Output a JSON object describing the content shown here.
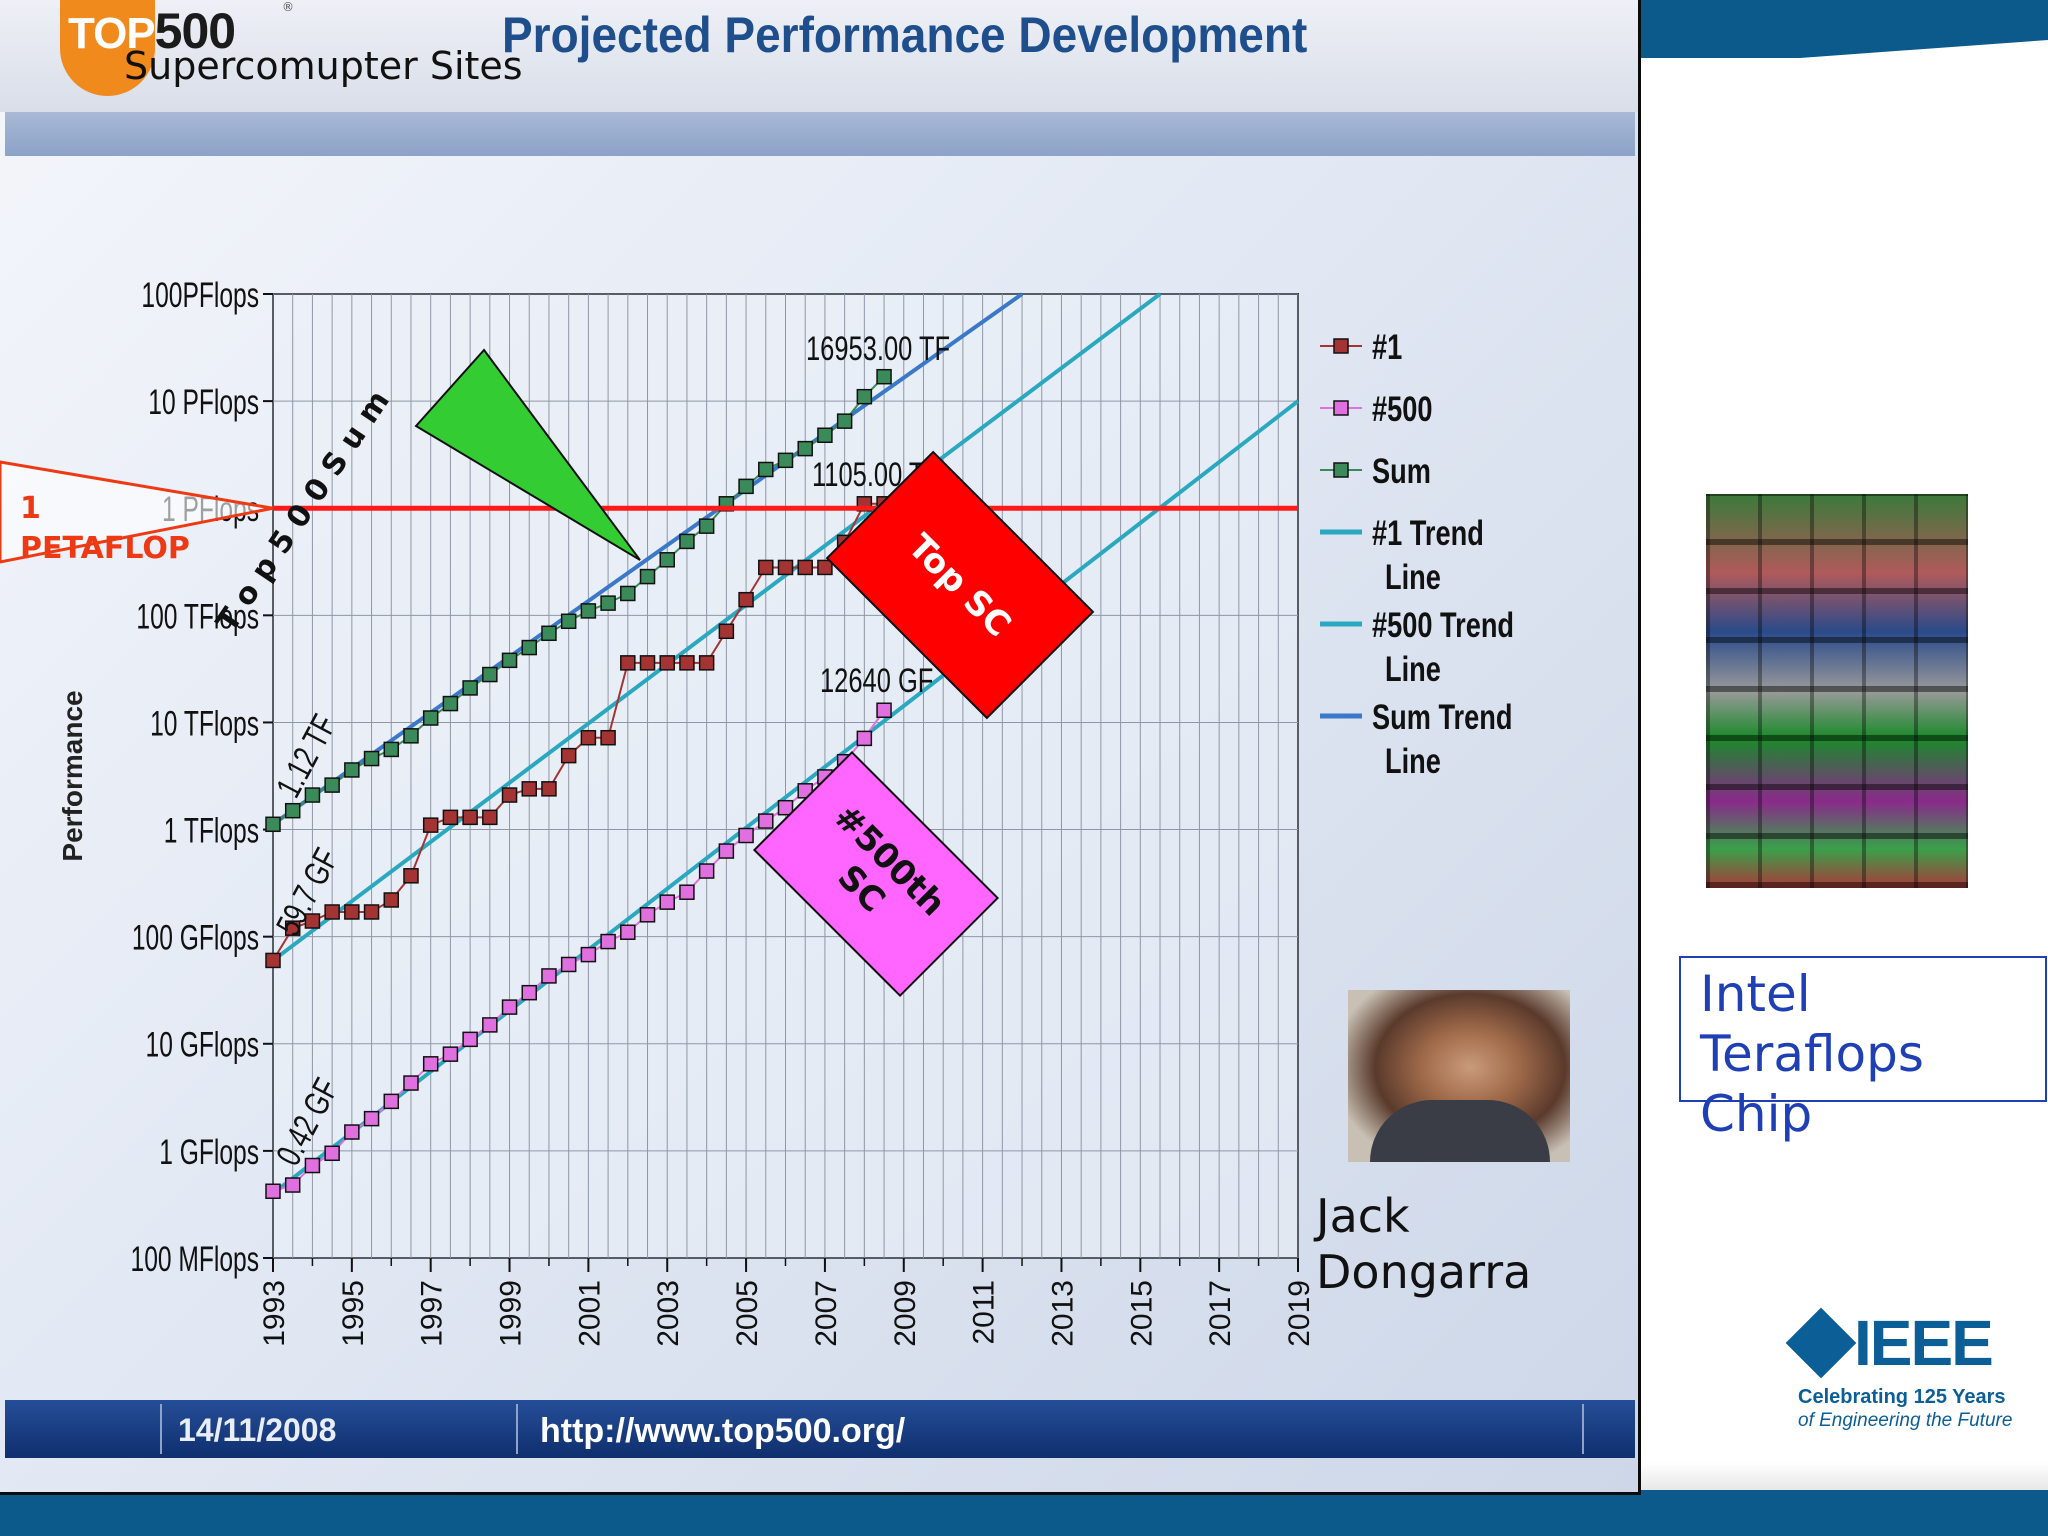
{
  "header": {
    "logo_word": "TOP",
    "logo_number": "500",
    "logo_mark": "®",
    "sites_label": "Supercomupter Sites",
    "title": "Projected Performance Development"
  },
  "footer": {
    "date": "14/11/2008",
    "url": "http://www.top500.org/"
  },
  "chart_data": {
    "type": "line",
    "title": "Projected Performance Development",
    "ylabel": "Performance",
    "xlabel": "",
    "y_scale": "log",
    "y_unit": "Flops",
    "ylim": [
      100000000.0,
      1e+17
    ],
    "xlim": [
      1993,
      2019
    ],
    "y_tick_labels": [
      "100PFlops",
      "10 PFlops",
      "1 PFlops",
      "100 TFlops",
      "10 TFlops",
      "1 TFlops",
      "100 GFlops",
      "10 GFlops",
      "1 GFlops",
      "100 MFlops"
    ],
    "x_tick_labels": [
      "1993",
      "1995",
      "1997",
      "1999",
      "2001",
      "2003",
      "2005",
      "2007",
      "2009",
      "2011",
      "2013",
      "2015",
      "2017",
      "2019"
    ],
    "grid": true,
    "legend_position": "right",
    "series": [
      {
        "name": "#1",
        "marker": "square",
        "color": "#a43434",
        "x": [
          1993.0,
          1993.5,
          1994.0,
          1994.5,
          1995.0,
          1995.5,
          1996.0,
          1996.5,
          1997.0,
          1997.5,
          1998.0,
          1998.5,
          1999.0,
          1999.5,
          2000.0,
          2000.5,
          2001.0,
          2001.5,
          2002.0,
          2002.5,
          2003.0,
          2003.5,
          2004.0,
          2004.5,
          2005.0,
          2005.5,
          2006.0,
          2006.5,
          2007.0,
          2007.5,
          2008.0,
          2008.5
        ],
        "y": [
          60000000000.0,
          120000000000.0,
          140000000000.0,
          170000000000.0,
          170000000000.0,
          170000000000.0,
          220000000000.0,
          370000000000.0,
          1100000000000.0,
          1300000000000.0,
          1300000000000.0,
          1300000000000.0,
          2100000000000.0,
          2400000000000.0,
          2400000000000.0,
          4900000000000.0,
          7200000000000.0,
          7200000000000.0,
          36000000000000.0,
          36000000000000.0,
          36000000000000.0,
          36000000000000.0,
          36000000000000.0,
          71000000000000.0,
          140000000000000.0,
          280000000000000.0,
          280000000000000.0,
          280000000000000.0,
          280000000000000.0,
          480000000000000.0,
          1100000000000000.0,
          1100000000000000.0
        ]
      },
      {
        "name": "#500",
        "marker": "square",
        "color": "#e070e0",
        "x": [
          1993.0,
          1993.5,
          1994.0,
          1994.5,
          1995.0,
          1995.5,
          1996.0,
          1996.5,
          1997.0,
          1997.5,
          1998.0,
          1998.5,
          1999.0,
          1999.5,
          2000.0,
          2000.5,
          2001.0,
          2001.5,
          2002.0,
          2002.5,
          2003.0,
          2003.5,
          2004.0,
          2004.5,
          2005.0,
          2005.5,
          2006.0,
          2006.5,
          2007.0,
          2007.5,
          2008.0,
          2008.5
        ],
        "y": [
          420000000.0,
          480000000.0,
          730000000.0,
          950000000.0,
          1500000000.0,
          2000000000.0,
          2900000000.0,
          4300000000.0,
          6500000000.0,
          8000000000.0,
          11000000000.0,
          15000000000.0,
          22000000000.0,
          30000000000.0,
          43000000000.0,
          55000000000.0,
          68000000000.0,
          90000000000.0,
          110000000000.0,
          160000000000.0,
          210000000000.0,
          260000000000.0,
          410000000000.0,
          630000000000.0,
          880000000000.0,
          1200000000000.0,
          1600000000000.0,
          2300000000000.0,
          3100000000000.0,
          4300000000000.0,
          7100000000000.0,
          13000000000000.0
        ]
      },
      {
        "name": "Sum",
        "marker": "square",
        "color": "#3a8a5a",
        "x": [
          1993.0,
          1993.5,
          1994.0,
          1994.5,
          1995.0,
          1995.5,
          1996.0,
          1996.5,
          1997.0,
          1997.5,
          1998.0,
          1998.5,
          1999.0,
          1999.5,
          2000.0,
          2000.5,
          2001.0,
          2001.5,
          2002.0,
          2002.5,
          2003.0,
          2003.5,
          2004.0,
          2004.5,
          2005.0,
          2005.5,
          2006.0,
          2006.5,
          2007.0,
          2007.5,
          2008.0,
          2008.5
        ],
        "y": [
          1120000000000.0,
          1500000000000.0,
          2100000000000.0,
          2600000000000.0,
          3600000000000.0,
          4600000000000.0,
          5600000000000.0,
          7500000000000.0,
          11000000000000.0,
          15000000000000.0,
          21000000000000.0,
          28000000000000.0,
          38000000000000.0,
          50000000000000.0,
          68000000000000.0,
          88000000000000.0,
          110000000000000.0,
          130000000000000.0,
          160000000000000.0,
          230000000000000.0,
          330000000000000.0,
          490000000000000.0,
          680000000000000.0,
          1100000000000000.0,
          1600000000000000.0,
          2300000000000000.0,
          2800000000000000.0,
          3600000000000000.0,
          4800000000000000.0,
          6500000000000000.0,
          1.1e+16,
          1.69e+16
        ]
      },
      {
        "name": "#1 Trend Line",
        "color": "#2aa8c0",
        "x": [
          1993,
          2015.5
        ],
        "y": [
          60000000000.0,
          1e+17
        ]
      },
      {
        "name": "#500 Trend Line",
        "color": "#2aa8c0",
        "x": [
          1993,
          2019
        ],
        "y": [
          400000000.0,
          1e+16
        ]
      },
      {
        "name": "Sum Trend Line",
        "color": "#3a78c8",
        "x": [
          1993,
          2012
        ],
        "y": [
          1120000000000.0,
          1e+17
        ]
      }
    ],
    "data_labels": [
      "16953.00 TF",
      "1105.00 TF",
      "12640 GF",
      "1.12 TF",
      "59.7 GF",
      "0.42 GF"
    ],
    "annotations": {
      "petaflop_line_label": "1 PETAFLOP",
      "top_sc": "Top SC",
      "sc_500th": "#500th SC",
      "top500_arrow_text": "Top 500 Sum"
    },
    "colors": {
      "petaflop_line": "#ff1a1a",
      "top_sc_box": "#ff0000",
      "sc_500th_box": "#ff66ff",
      "arrow_fill": "#33cc33"
    }
  },
  "side": {
    "person_caption": "Jack Dongarra",
    "chip_caption": "Intel Teraflops Chip",
    "ieee_word": "IEEE",
    "ieee_tagline1": "Celebrating 125 Years",
    "ieee_tagline2": "of Engineering the Future"
  }
}
